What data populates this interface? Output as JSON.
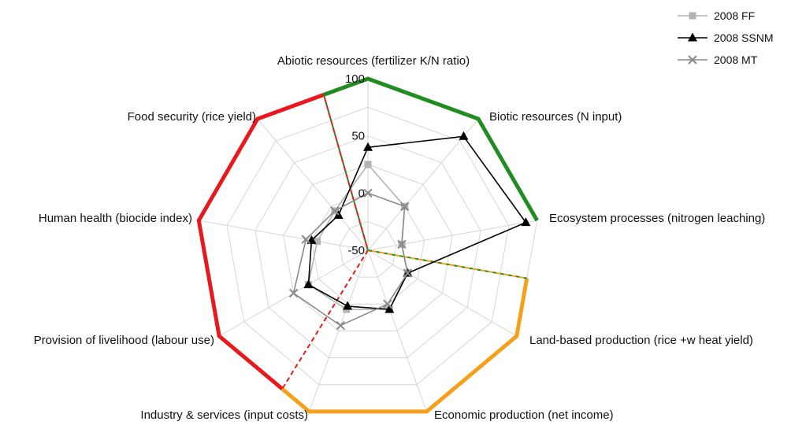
{
  "chart_data": {
    "type": "radar",
    "axes": [
      "Abiotic resources (fertilizer K/N ratio)",
      "Biotic resources (N input)",
      "Ecosystem processes (nitrogen leaching)",
      "Land-based production (rice +w heat yield)",
      "Economic production (net income)",
      "Industry & services (input costs)",
      "Provision of livelihood (labour use)",
      "Human health (biocide index)",
      "Food security (rice yield)"
    ],
    "r_range": [
      -50,
      100
    ],
    "ticks": [
      -50,
      0,
      50,
      100
    ],
    "tick_labels": [
      "-50",
      "0",
      "50",
      "100"
    ],
    "grid": true,
    "legend_position": "top-right",
    "series": [
      {
        "name": "2008 FF",
        "color": "#b3b3b3",
        "marker": "square",
        "values": [
          25,
          0,
          -20,
          -10,
          5,
          5,
          10,
          -5,
          -5
        ]
      },
      {
        "name": "2008 SSNM",
        "color": "#000000",
        "marker": "triangle",
        "values": [
          40,
          80,
          90,
          -10,
          5,
          2,
          10,
          0,
          -10
        ]
      },
      {
        "name": "2008 MT",
        "color": "#8a8a8a",
        "marker": "x",
        "values": [
          0,
          0,
          -20,
          -10,
          0,
          20,
          25,
          5,
          -5
        ]
      }
    ],
    "outer_segments": [
      {
        "color": "#228b22",
        "from_axis": 8,
        "to_axis": 2,
        "split_start": 0.6
      },
      {
        "color": "#f5a01a",
        "from_axis": 2,
        "to_axis": 5,
        "split_start": 0.5,
        "split_end": 0.3
      },
      {
        "color": "#e8191e",
        "from_axis": 5,
        "to_axis": 8,
        "split_start": 0.3,
        "split_end": 0.6
      }
    ],
    "dividers": [
      {
        "edge_from": 8,
        "fraction": 0.6,
        "colors": [
          "#228b22",
          "#e8191e"
        ]
      },
      {
        "edge_from": 2,
        "fraction": 0.5,
        "colors": [
          "#228b22",
          "#f5a01a"
        ]
      },
      {
        "edge_from": 5,
        "fraction": 0.3,
        "colors": [
          "#e8191e"
        ]
      }
    ]
  }
}
